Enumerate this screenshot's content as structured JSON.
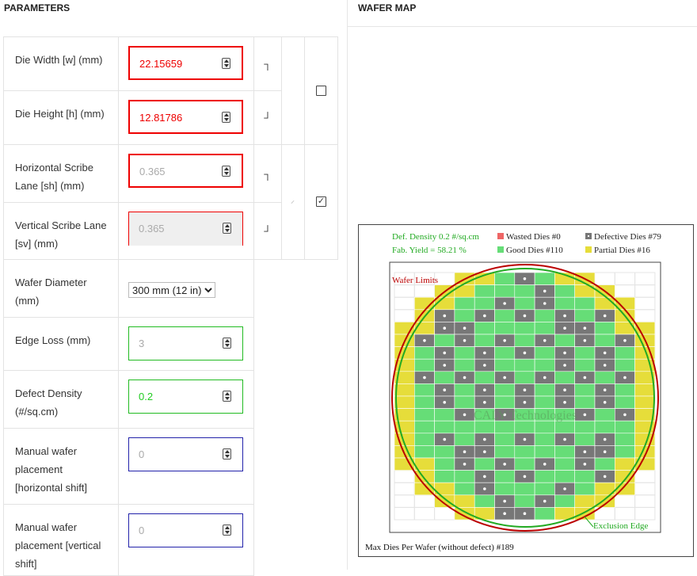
{
  "headers": {
    "parameters": "PARAMETERS",
    "wafer_map": "WAFER MAP"
  },
  "fields": {
    "die_width": {
      "label": "Die Width [w] (mm)",
      "value": "22.15659"
    },
    "die_height": {
      "label": "Die Height [h] (mm)",
      "value": "12.81786"
    },
    "h_scribe": {
      "label": "Horizontal Scribe Lane [sh] (mm)",
      "value": "0.365"
    },
    "v_scribe": {
      "label": "Vertical Scribe Lane [sv] (mm)",
      "value": "0.365"
    },
    "wafer_diameter": {
      "label": "Wafer Diameter (mm)",
      "value": "300 mm (12 in)"
    },
    "edge_loss": {
      "label": "Edge Loss (mm)",
      "value": "3"
    },
    "defect_density": {
      "label": "Defect Density (#/sq.cm)",
      "value": "0.2"
    },
    "manual_h": {
      "label": "Manual wafer placement [horizontal shift]",
      "value": "0"
    },
    "manual_v": {
      "label": "Manual wafer placement [vertical shift]",
      "value": "0"
    }
  },
  "links": {
    "dims_locked": false,
    "scribe_locked": true
  },
  "wafer": {
    "def_density": "Def. Density 0.2 #/sq.cm",
    "fab_yield": "Fab. Yield = 58.21 %",
    "wasted": "Wasted Dies  #0",
    "defective": "Defective Dies  #79",
    "good": "Good Dies #110",
    "partial": "Partial Dies #16",
    "wafer_limits": "Wafer Limits",
    "exclusion_edge": "Exclusion Edge",
    "max_dies": "Max Dies Per Wafer (without defect) #189",
    "watermark": "CALY Technologies",
    "colors": {
      "good": "#66dd77",
      "defective": "#777777",
      "partial": "#e6dd3a",
      "wasted": "#ee6666",
      "limit": "#bb0000",
      "exclusion": "#22aa22",
      "legend_text": "#22aa22"
    }
  }
}
